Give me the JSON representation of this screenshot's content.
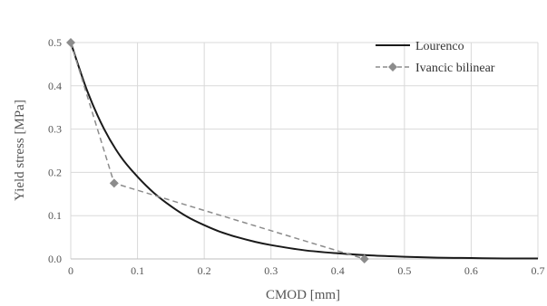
{
  "chart_data": {
    "type": "line",
    "xlabel": "CMOD [mm]",
    "ylabel": "Yield stress [MPa]",
    "xlim": [
      0,
      0.7
    ],
    "ylim": [
      0,
      0.5
    ],
    "x_ticks": [
      0,
      0.1,
      0.2,
      0.3,
      0.4,
      0.5,
      0.6,
      0.7
    ],
    "x_tick_labels": [
      "0",
      "0.1",
      "0.2",
      "0.3",
      "0.4",
      "0.5",
      "0.6",
      "0.7"
    ],
    "y_ticks": [
      0,
      0.1,
      0.2,
      0.3,
      0.4,
      0.5
    ],
    "y_tick_labels": [
      "0.0",
      "0.1",
      "0.2",
      "0.3",
      "0.4",
      "0.5"
    ],
    "grid": true,
    "legend": "top-right",
    "series": [
      {
        "name": "Lourenco",
        "style": "solid",
        "color": "#1a1a1a",
        "x": [
          0,
          0.025,
          0.05,
          0.075,
          0.1,
          0.125,
          0.15,
          0.175,
          0.2,
          0.225,
          0.25,
          0.275,
          0.3,
          0.35,
          0.4,
          0.45,
          0.5,
          0.55,
          0.6,
          0.65,
          0.7
        ],
        "y": [
          0.5,
          0.387,
          0.3,
          0.236,
          0.19,
          0.152,
          0.122,
          0.097,
          0.078,
          0.062,
          0.05,
          0.04,
          0.032,
          0.02,
          0.013,
          0.008,
          0.005,
          0.003,
          0.002,
          0.001,
          0.001
        ]
      },
      {
        "name": "Ivancic bilinear",
        "style": "dashed",
        "marker": "diamond",
        "color": "#8c8c8c",
        "x": [
          0,
          0.065,
          0.44
        ],
        "y": [
          0.5,
          0.175,
          0.0
        ]
      }
    ]
  }
}
